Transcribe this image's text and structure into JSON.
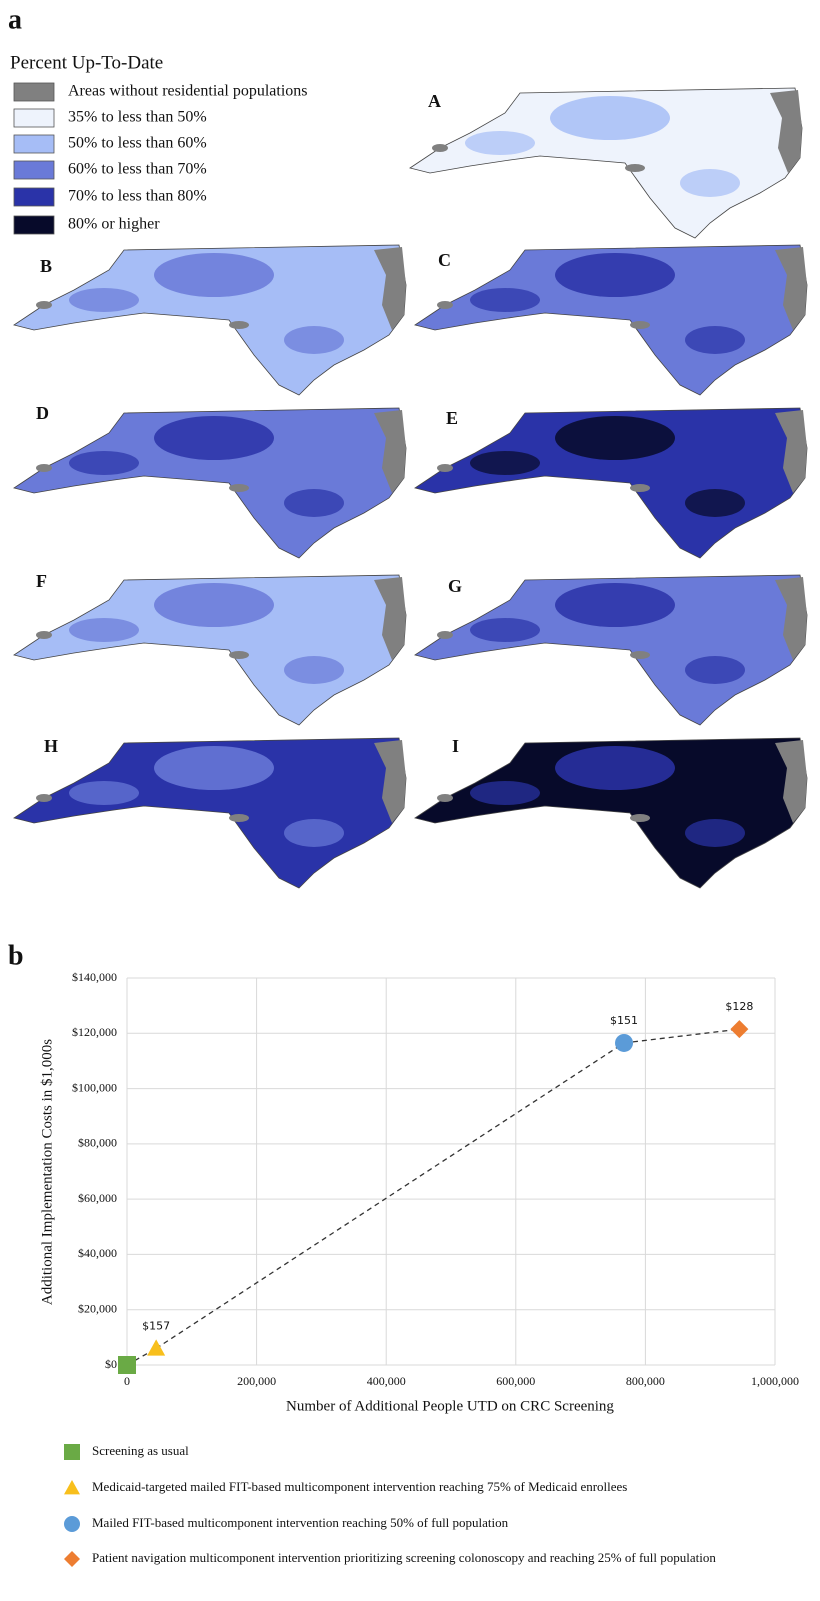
{
  "figure_a": {
    "label": "a",
    "legend_title": "Percent Up-To-Date",
    "legend": [
      {
        "label": "Areas without residential populations",
        "color": "#808080"
      },
      {
        "label": "35% to less than 50%",
        "color": "#eef3fc"
      },
      {
        "label": "50% to less than 60%",
        "color": "#a6bdf6"
      },
      {
        "label": "60% to less than 70%",
        "color": "#6a7ad8"
      },
      {
        "label": "70% to less than 80%",
        "color": "#2a33a8"
      },
      {
        "label": "80% or higher",
        "color": "#070a2a"
      }
    ],
    "panels": [
      "A",
      "B",
      "C",
      "D",
      "E",
      "F",
      "G",
      "H",
      "I"
    ]
  },
  "chart_data": {
    "type": "scatter",
    "label": "b",
    "x_label": "Number of Additional People UTD on CRC Screening",
    "y_label": "Additional Implementation Costs in $1,000s",
    "xlim": [
      0,
      1000000
    ],
    "xticks": [
      0,
      {
        "value": 200000,
        "label": "200,000"
      },
      {
        "value": 400000,
        "label": "400,000"
      },
      {
        "value": 600000,
        "label": "600,000"
      },
      {
        "value": 800000,
        "label": "800,000"
      },
      {
        "value": 1000000,
        "label": "1,000,000"
      }
    ],
    "ylim": [
      0,
      140000
    ],
    "yticks": [
      {
        "value": 0,
        "label": "$0"
      },
      {
        "value": 20000,
        "label": "$20,000"
      },
      {
        "value": 40000,
        "label": "$40,000"
      },
      {
        "value": 60000,
        "label": "$60,000"
      },
      {
        "value": 80000,
        "label": "$80,000"
      },
      {
        "value": 100000,
        "label": "$100,000"
      },
      {
        "value": 120000,
        "label": "$120,000"
      },
      {
        "value": 140000,
        "label": "$140,000"
      }
    ],
    "grid": true,
    "connector": "dashed",
    "series": [
      {
        "name": "Screening as usual",
        "color": "#6aaa45",
        "marker": "square",
        "x": [
          0
        ],
        "values": [
          0
        ]
      },
      {
        "name": "Medicaid-targeted mailed FIT-based multicomponent intervention reaching 75% of Medicaid enrollees",
        "color": "#f8bf1c",
        "marker": "triangle",
        "x": [
          45000
        ],
        "values": [
          6000
        ],
        "annotation": "$157"
      },
      {
        "name": "Mailed FIT-based multicomponent intervention reaching 50% of full population",
        "color": "#5b9bd8",
        "marker": "circle",
        "x": [
          767000
        ],
        "values": [
          116500
        ],
        "annotation": "$151"
      },
      {
        "name": "Patient navigation multicomponent intervention prioritizing screening colonoscopy and reaching 25% of full population",
        "color": "#ed7d31",
        "marker": "diamond",
        "x": [
          945000
        ],
        "values": [
          121500
        ],
        "annotation": "$128"
      }
    ]
  }
}
